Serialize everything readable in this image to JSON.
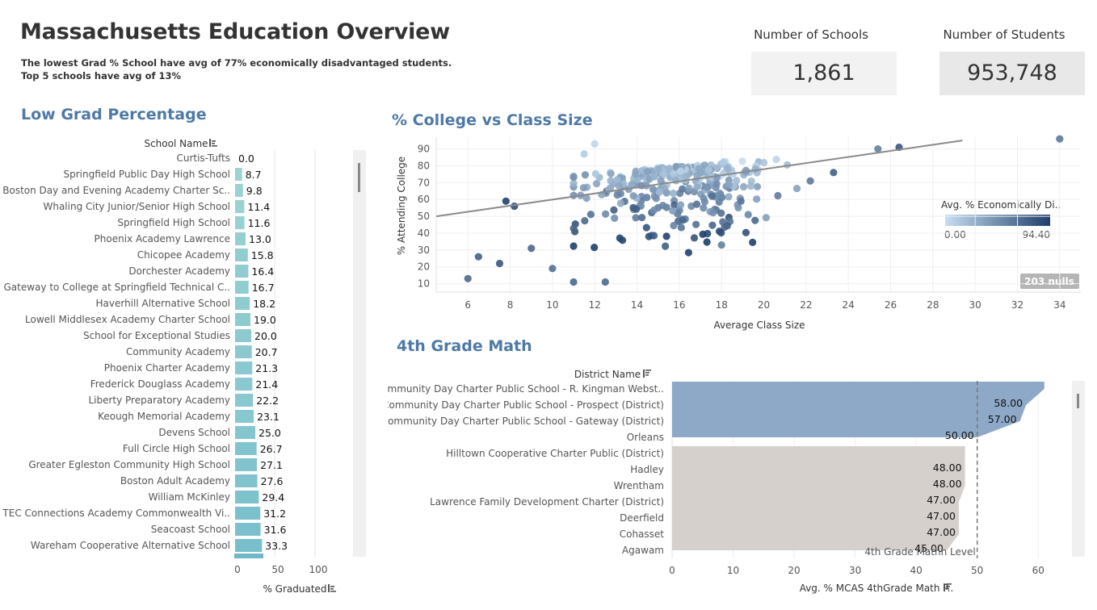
{
  "header": {
    "title": "Massachusetts Education Overview",
    "subtitle_line1": "The lowest Grad % School have avg of 77% economically disadvantaged students.",
    "subtitle_line2": "Top 5 schools have avg of 13%"
  },
  "kpis": {
    "schools_label": "Number of Schools",
    "schools_value": "1,861",
    "students_label": "Number of Students",
    "students_value": "953,748"
  },
  "sections": {
    "low_grad": "Low Grad Percentage",
    "college_vs_class": "% College vs Class Size",
    "math": "4th Grade Math"
  },
  "chart_data": [
    {
      "type": "bar",
      "orientation": "horizontal",
      "title": "Low Grad Percentage",
      "row_header": "School Name",
      "xlabel": "% Graduated",
      "xticks": [
        0,
        50,
        100
      ],
      "xlim": [
        0,
        140
      ],
      "bar_color_scale": [
        "#a8dcd5",
        "#6fb8c9"
      ],
      "categories": [
        "Curtis-Tufts",
        "Springfield Public Day High School",
        "Boston Day and Evening Academy Charter Sc..",
        "Whaling City Junior/Senior High School",
        "Springfield High School",
        "Phoenix Academy Lawrence",
        "Chicopee Academy",
        "Dorchester Academy",
        "Gateway to College at Springfield Technical C..",
        "Haverhill Alternative School",
        "Lowell Middlesex Academy Charter School",
        "School for Exceptional Studies",
        "Community Academy",
        "Phoenix Charter Academy",
        "Frederick Douglass Academy",
        "Liberty Preparatory Academy",
        "Keough Memorial Academy",
        "Devens School",
        "Full Circle High School",
        "Greater Egleston Community High School",
        "Boston Adult Academy",
        "William McKinley",
        "TEC Connections Academy Commonwealth Vi..",
        "Seacoast School",
        "Wareham Cooperative Alternative School"
      ],
      "values": [
        0.0,
        8.7,
        9.8,
        11.4,
        11.6,
        13.0,
        15.8,
        16.4,
        16.7,
        18.2,
        19.0,
        20.0,
        20.7,
        21.3,
        21.4,
        22.2,
        23.1,
        25.0,
        26.7,
        27.1,
        27.6,
        29.4,
        31.2,
        31.6,
        33.3
      ],
      "labels": [
        "0.0",
        "8.7",
        "9.8",
        "11.4",
        "11.6",
        "13.0",
        "15.8",
        "16.4",
        "16.7",
        "18.2",
        "19.0",
        "20.0",
        "20.7",
        "21.3",
        "21.4",
        "22.2",
        "23.1",
        "25.0",
        "26.7",
        "27.1",
        "27.6",
        "29.4",
        "31.2",
        "31.6",
        "33.3"
      ]
    },
    {
      "type": "scatter",
      "title": "% College vs Class Size",
      "xlabel": "Average Class Size",
      "ylabel": "% Attending College",
      "xlim": [
        4.5,
        35
      ],
      "ylim": [
        5,
        97
      ],
      "xticks": [
        6,
        8,
        10,
        12,
        14,
        16,
        18,
        20,
        22,
        24,
        26,
        28,
        30,
        32,
        34
      ],
      "yticks": [
        10,
        20,
        30,
        40,
        50,
        60,
        70,
        80,
        90
      ],
      "grid": true,
      "trend_line": {
        "x": [
          4.5,
          29.4
        ],
        "y": [
          50,
          95
        ]
      },
      "color_legend": {
        "title": "Avg. % Economically Di..",
        "min_label": "0.00",
        "max_label": "94.40",
        "min": 0,
        "max": 94.4,
        "colors": [
          "#c6def1",
          "#1f3f6a"
        ]
      },
      "nulls_badge": "203 nulls",
      "point_count": 300
    },
    {
      "type": "bar",
      "orientation": "horizontal",
      "title": "4th Grade Math",
      "row_header": "District Name",
      "xlabel": "Avg. % MCAS 4thGrade Math P..",
      "xticks": [
        0,
        10,
        20,
        30,
        40,
        50,
        60
      ],
      "xlim": [
        0,
        65
      ],
      "reference_line": {
        "value": 50,
        "label": "4th Grade Mathh Level"
      },
      "categories": [
        "Community Day Charter Public School - R. Kingman Webst..",
        "Community Day Charter Public School - Prospect (District)",
        "Community Day Charter Public School - Gateway (District)",
        "Orleans",
        "Hilltown Cooperative Charter Public (District)",
        "Hadley",
        "Wrentham",
        "Lawrence Family Development Charter (District)",
        "Deerfield",
        "Cohasset",
        "Agawam"
      ],
      "values": [
        61,
        58,
        57,
        50,
        48,
        48,
        48,
        47,
        47,
        47,
        45
      ],
      "labels": [
        "",
        "58.00",
        "57.00",
        "50.00",
        "",
        "48.00",
        "48.00",
        "47.00",
        "47.00",
        "47.00",
        "45.00"
      ],
      "above_color": "#8ea9c8",
      "below_color": "#d5d0cc"
    }
  ]
}
